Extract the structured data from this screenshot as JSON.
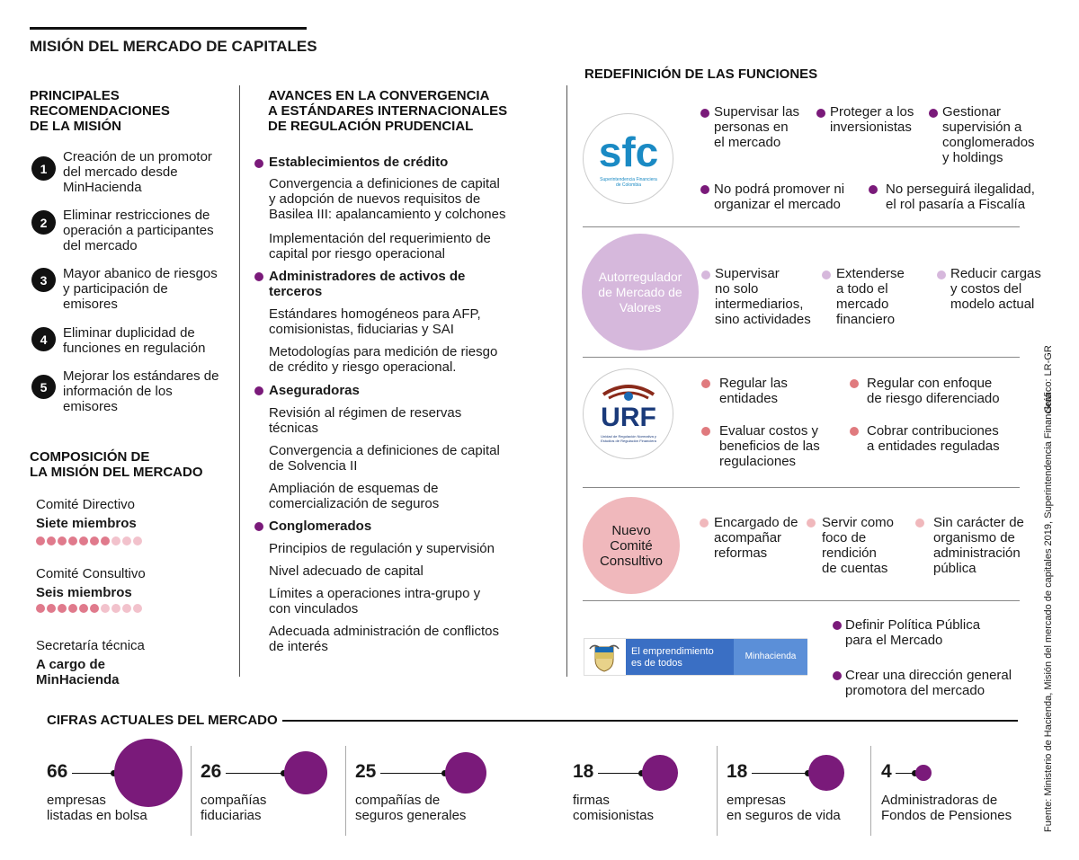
{
  "title": "MISIÓN DEL MERCADO DE CAPITALES",
  "recs": {
    "heading_l1": "PRINCIPALES",
    "heading_l2": "RECOMENDACIONES",
    "heading_l3": "DE LA MISIÓN",
    "items": [
      {
        "n": "1",
        "l1": "Creación de un promotor",
        "l2": "del mercado desde",
        "l3": "MinHacienda"
      },
      {
        "n": "2",
        "l1": "Eliminar restricciones de",
        "l2": "operación a participantes",
        "l3": "del mercado"
      },
      {
        "n": "3",
        "l1": "Mayor abanico de riesgos",
        "l2": "y participación de",
        "l3": "emisores"
      },
      {
        "n": "4",
        "l1": "Eliminar duplicidad de",
        "l2": "funciones en regulación",
        "l3": ""
      },
      {
        "n": "5",
        "l1": "Mejorar los estándares de",
        "l2": "información de los",
        "l3": "emisores"
      }
    ]
  },
  "composition": {
    "heading_l1": "COMPOSICIÓN DE",
    "heading_l2": "LA MISIÓN DEL MERCADO",
    "directivo_label": "Comité Directivo",
    "directivo_value": "Siete miembros",
    "directivo_count": 7,
    "consultivo_label": "Comité Consultivo",
    "consultivo_value": "Seis miembros",
    "consultivo_count": 6,
    "dots_total": 10,
    "secretaria_label": "Secretaría técnica",
    "secretaria_l1": "A cargo de",
    "secretaria_l2": "MinHacienda"
  },
  "avances": {
    "heading_l1": "AVANCES EN LA CONVERGENCIA",
    "heading_l2": "A ESTÁNDARES INTERNACIONALES",
    "heading_l3": "DE REGULACIÓN PRUDENCIAL",
    "s1": "Establecimientos de crédito",
    "s1_i1_l1": "Convergencia a definiciones de capital",
    "s1_i1_l2": "y adopción de nuevos requisitos de",
    "s1_i1_l3": "Basilea III: apalancamiento y colchones",
    "s1_i2_l1": "Implementación del requerimiento de",
    "s1_i2_l2": "capital por riesgo operacional",
    "s2_l1": "Administradores de activos de",
    "s2_l2": "terceros",
    "s2_i1_l1": "Estándares homogéneos para AFP,",
    "s2_i1_l2": "comisionistas, fiduciarias y SAI",
    "s2_i2_l1": "Metodologías para medición de riesgo",
    "s2_i2_l2": "de crédito y riesgo operacional.",
    "s3": "Aseguradoras",
    "s3_i1_l1": "Revisión al régimen de reservas",
    "s3_i1_l2": "técnicas",
    "s3_i2_l1": "Convergencia a definiciones de capital",
    "s3_i2_l2": "de Solvencia II",
    "s3_i3_l1": "Ampliación de esquemas de",
    "s3_i3_l2": "comercialización de seguros",
    "s4": "Conglomerados",
    "s4_i1": "Principios de regulación y supervisión",
    "s4_i2": "Nivel adecuado de capital",
    "s4_i3_l1": "Límites a operaciones intra-grupo y",
    "s4_i3_l2": "con vinculados",
    "s4_i4_l1": "Adecuada administración de conflictos",
    "s4_i4_l2": "de interés"
  },
  "redef": {
    "heading": "REDEFINICIÓN DE LAS FUNCIONES",
    "sfc": {
      "logo_text": "sfc",
      "logo_sub_l1": "Superintendencia Financiera",
      "logo_sub_l2": "de Colombia",
      "f1": [
        "Supervisar las",
        "personas en",
        "el mercado"
      ],
      "f2": [
        "Proteger a los",
        "inversionistas"
      ],
      "f3": [
        "Gestionar",
        "supervisión a",
        "conglomerados",
        "y holdings"
      ],
      "f4": [
        "No podrá promover ni",
        "organizar el mercado"
      ],
      "f5": [
        "No perseguirá ilegalidad,",
        "el rol pasaría a Fiscalía"
      ]
    },
    "amv": {
      "circle": [
        "Autorregulador",
        "de Mercado de",
        "Valores"
      ],
      "f1": [
        "Supervisar",
        "no solo",
        "intermediarios,",
        "sino actividades"
      ],
      "f2": [
        "Extenderse",
        "a todo el",
        "mercado",
        "financiero"
      ],
      "f3": [
        "Reducir cargas",
        "y costos del",
        "modelo actual"
      ]
    },
    "urf": {
      "logo_text": "URF",
      "logo_sub_l1": "Unidad de Regulación Normativa y",
      "logo_sub_l2": "Estudios de Regulación Financiera",
      "f1": [
        "Regular las",
        "entidades"
      ],
      "f2": [
        "Regular con enfoque",
        "de riesgo diferenciado"
      ],
      "f3": [
        "Evaluar costos y",
        "beneficios de las",
        "regulaciones"
      ],
      "f4": [
        "Cobrar contribuciones",
        "a entidades reguladas"
      ]
    },
    "comite": {
      "circle": [
        "Nuevo",
        "Comité",
        "Consultivo"
      ],
      "f1": [
        "Encargado de",
        "acompañar",
        "reformas"
      ],
      "f2": [
        "Servir como",
        "foco de",
        "rendición",
        "de cuentas"
      ],
      "f3": [
        "Sin carácter de",
        "organismo de",
        "administración",
        "pública"
      ]
    },
    "minhacienda": {
      "banner_l1": "El emprendimiento",
      "banner_l2": "es de todos",
      "banner_brand": "Minhacienda",
      "f1": [
        "Definir Política Pública",
        "para el Mercado"
      ],
      "f2": [
        "Crear una dirección general",
        "promotora del mercado"
      ]
    }
  },
  "cifras": {
    "heading": "CIFRAS ACTUALES DEL MERCADO",
    "items": [
      {
        "value": 66,
        "num": "66",
        "l1": "empresas",
        "l2": "listadas en bolsa"
      },
      {
        "value": 26,
        "num": "26",
        "l1": "compañías",
        "l2": "fiduciarias"
      },
      {
        "value": 25,
        "num": "25",
        "l1": "compañías de",
        "l2": "seguros generales"
      },
      {
        "value": 18,
        "num": "18",
        "l1": "firmas",
        "l2": "comisionistas"
      },
      {
        "value": 18,
        "num": "18",
        "l1": "empresas",
        "l2": "en seguros de vida"
      },
      {
        "value": 4,
        "num": "4",
        "l1": "Administradoras de",
        "l2": "Fondos de Pensiones"
      }
    ]
  },
  "credits": {
    "grafico": "Gráfico: LR-GR",
    "fuente": "Fuente: Ministerio de Hacienda, Misión del mercado de capitales 2019, Superintendencia Financiera"
  },
  "colors": {
    "purple": "#7a1a7a",
    "lilac": "#d6b8dc",
    "coral": "#e07a7e",
    "pink": "#f0b8bc",
    "dot_active": "#e07a8c",
    "dot_inactive": "#f2c2cc",
    "sfc_blue": "#1a8ac4",
    "banner_blue": "#3a6fc4"
  }
}
